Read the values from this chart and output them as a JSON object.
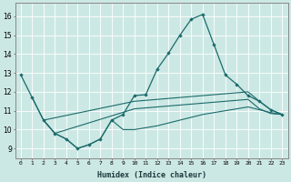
{
  "xlabel": "Humidex (Indice chaleur)",
  "x_ticks": [
    0,
    1,
    2,
    3,
    4,
    5,
    6,
    7,
    8,
    9,
    10,
    11,
    12,
    13,
    14,
    15,
    16,
    17,
    18,
    19,
    20,
    21,
    22,
    23
  ],
  "ylim": [
    8.5,
    16.7
  ],
  "xlim": [
    -0.5,
    23.5
  ],
  "yticks": [
    9,
    10,
    11,
    12,
    13,
    14,
    15,
    16
  ],
  "bg_color": "#cce8e4",
  "line_color": "#1a6b6b",
  "grid_color": "#b8d8d4",
  "line1_x": [
    0,
    1,
    2,
    3,
    4,
    5,
    6,
    7,
    8,
    9,
    10,
    11,
    12,
    13,
    14,
    15,
    16,
    17,
    18,
    19,
    20,
    21,
    22,
    23
  ],
  "line1_y": [
    12.9,
    11.7,
    10.5,
    9.8,
    9.5,
    9.0,
    9.2,
    9.5,
    10.5,
    10.8,
    11.8,
    11.85,
    13.2,
    14.05,
    15.0,
    15.85,
    16.1,
    14.5,
    12.9,
    12.4,
    11.8,
    11.5,
    11.05,
    10.8
  ],
  "line2_x": [
    1,
    2,
    10,
    11,
    12,
    13,
    14,
    15,
    16,
    17,
    18,
    19,
    20,
    21,
    22,
    23
  ],
  "line2_y": [
    11.7,
    10.5,
    11.5,
    11.55,
    11.6,
    11.65,
    11.7,
    11.75,
    11.8,
    11.85,
    11.9,
    11.95,
    12.0,
    11.5,
    11.05,
    10.8
  ],
  "line3_x": [
    2,
    3,
    10,
    11,
    12,
    13,
    14,
    15,
    16,
    17,
    18,
    19,
    20,
    21,
    22,
    23
  ],
  "line3_y": [
    10.5,
    9.8,
    11.1,
    11.15,
    11.2,
    11.25,
    11.3,
    11.35,
    11.4,
    11.45,
    11.5,
    11.55,
    11.6,
    11.1,
    10.85,
    10.8
  ],
  "line4_x": [
    2,
    3,
    4,
    5,
    6,
    7,
    8,
    9,
    10,
    11,
    12,
    13,
    14,
    15,
    16,
    17,
    18,
    19,
    20,
    21,
    22,
    23
  ],
  "line4_y": [
    10.5,
    9.8,
    9.5,
    9.0,
    9.2,
    9.5,
    10.5,
    10.0,
    10.0,
    10.1,
    10.2,
    10.35,
    10.5,
    10.65,
    10.8,
    10.9,
    11.0,
    11.1,
    11.2,
    11.05,
    10.9,
    10.8
  ]
}
